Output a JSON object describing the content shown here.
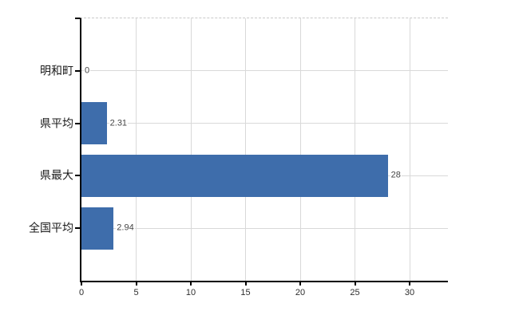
{
  "chart_data": {
    "type": "bar",
    "orientation": "horizontal",
    "title": "",
    "xlabel": "",
    "ylabel": "",
    "categories": [
      "明和町",
      "県平均",
      "県最大",
      "全国平均"
    ],
    "values": [
      0,
      2.31,
      28,
      2.94
    ],
    "value_labels": [
      "0",
      "2.31",
      "28",
      "2.94"
    ],
    "x_ticks": [
      0,
      5,
      10,
      15,
      20,
      25,
      30
    ],
    "xlim": [
      0,
      33.5
    ],
    "grid": true,
    "legend": false,
    "colors": {
      "bar": "#3e6dab",
      "gridline": "#d9d9d9",
      "axis": "#000000",
      "category_label": "#1a1a1a",
      "tick_label": "#2e2e2e",
      "value_label": "#454545",
      "background": "#ffffff"
    }
  }
}
